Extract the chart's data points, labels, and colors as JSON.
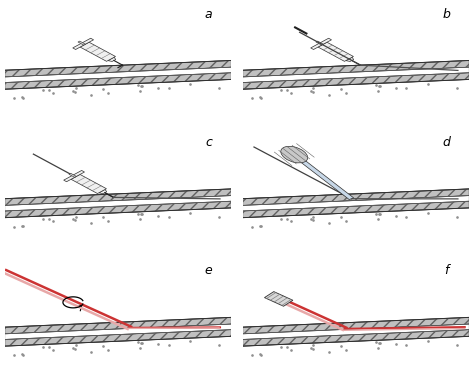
{
  "panels": [
    "a",
    "b",
    "c",
    "d",
    "e",
    "f"
  ],
  "bg_color": "#ffffff",
  "vessel_fill": "#c0c0c0",
  "vessel_ec": "#303030",
  "lumen_fill": "#ffffff",
  "needle_color": "#303030",
  "wire_color": "#505050",
  "catheter_red": "#cc3333",
  "catheter_pink": "#e8a8a8",
  "syringe_fill": "#f0f0f0",
  "syringe_ec": "#303030",
  "dilator_fill": "#b0c0d8",
  "dilator_handle_fill": "#c8c8c8",
  "dot_color": "#909090",
  "label_fontsize": 9,
  "label_fontstyle": "italic"
}
